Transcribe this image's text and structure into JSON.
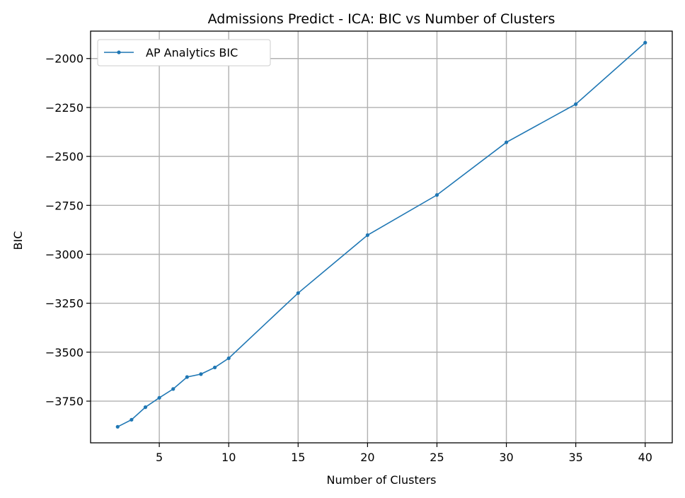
{
  "chart_data": {
    "type": "line",
    "title": "Admissions Predict - ICA: BIC vs Number of Clusters",
    "xlabel": "Number of Clusters",
    "ylabel": "BIC",
    "xlim": [
      0.05,
      41.95
    ],
    "ylim": [
      -3963,
      -1860
    ],
    "xticks": [
      5,
      10,
      15,
      20,
      25,
      30,
      35,
      40
    ],
    "yticks": [
      -3750,
      -3500,
      -3250,
      -3000,
      -2750,
      -2500,
      -2250,
      -2000
    ],
    "grid": true,
    "legend_position": "top-left",
    "series": [
      {
        "name": "AP Analytics BIC",
        "color": "#1f77b4",
        "x": [
          2,
          3,
          4,
          5,
          6,
          7,
          8,
          9,
          10,
          15,
          20,
          25,
          30,
          35,
          40
        ],
        "y": [
          -3881,
          -3845,
          -3781,
          -3733,
          -3688,
          -3627,
          -3612,
          -3578,
          -3531,
          -3198,
          -2902,
          -2697,
          -2428,
          -2233,
          -1919
        ]
      }
    ]
  }
}
